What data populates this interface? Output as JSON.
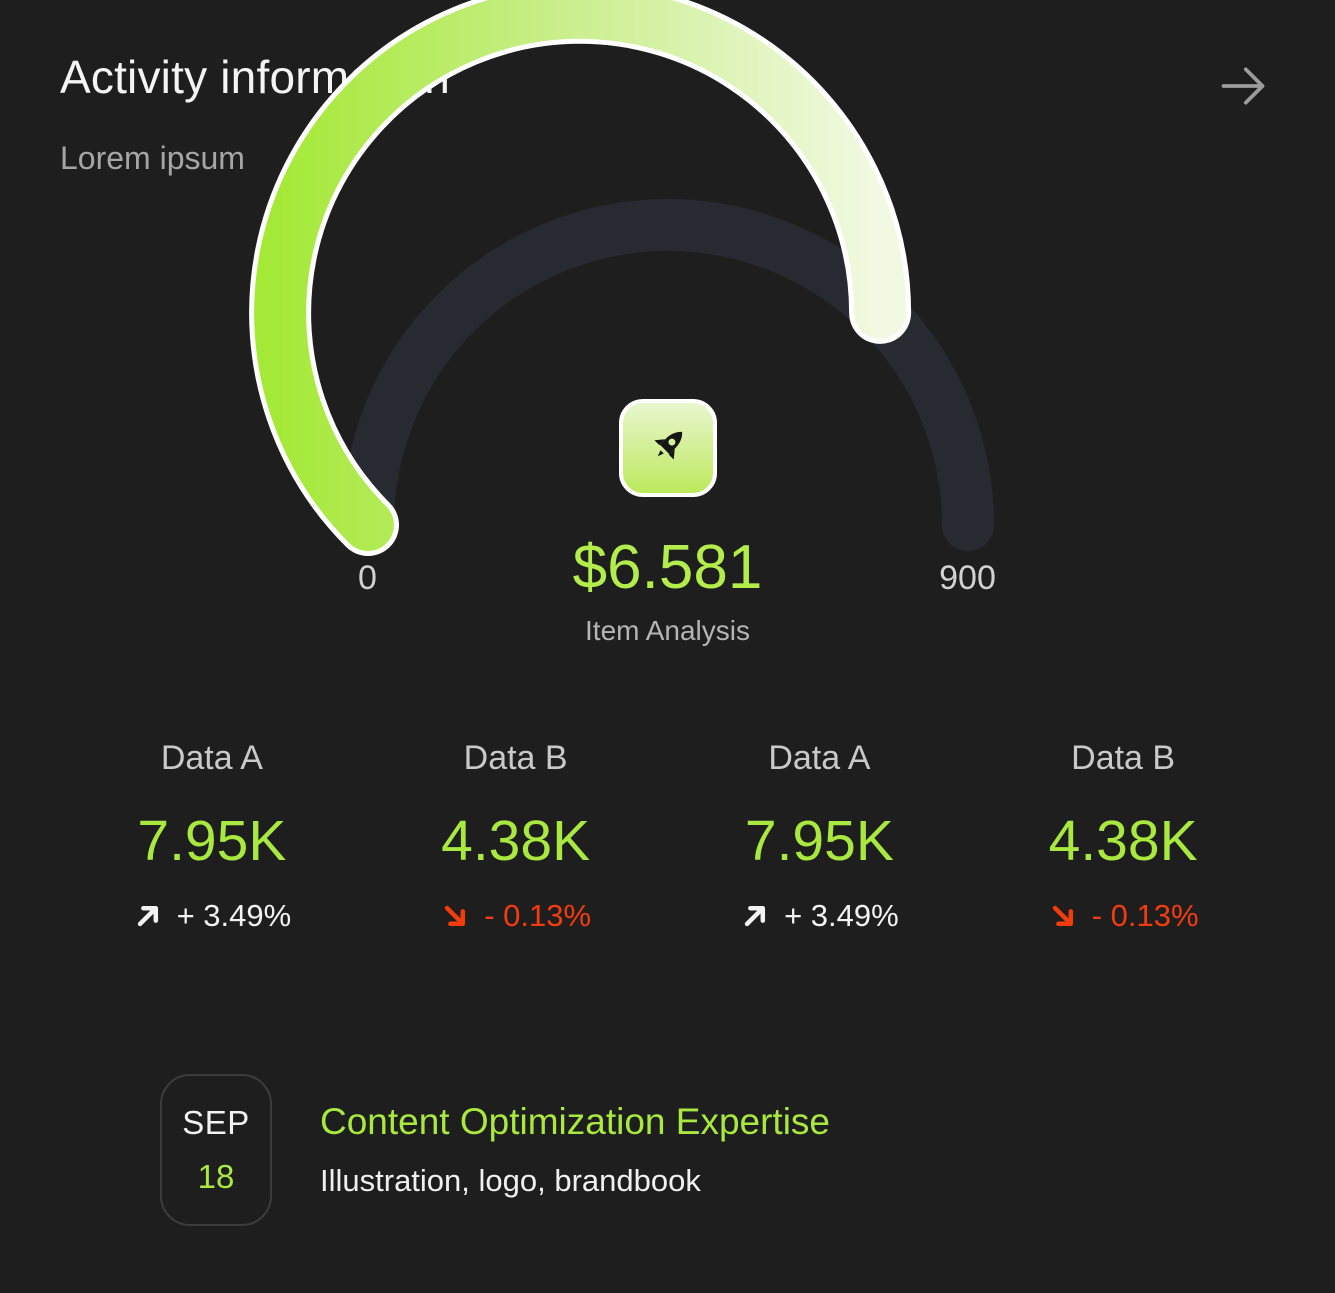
{
  "colors": {
    "background": "#1E1E1E",
    "accent": "#A9E93F",
    "accent_bright": "#B3ED4C",
    "accent_pale": "#F2F9E3",
    "negative": "#F33C0E",
    "track": "#282A31",
    "muted_text": "#A5A5A5",
    "white_text": "#F2F2F2"
  },
  "header": {
    "title": "Activity information",
    "subtitle": "Lorem ipsum"
  },
  "gauge": {
    "min_label": "0",
    "max_label": "900",
    "value": "$6.581",
    "caption": "Item Analysis"
  },
  "chart_data": {
    "type": "gauge",
    "min": 0,
    "max": 900,
    "value_display": "$6.581",
    "fill_fraction": 0.75,
    "caption": "Item Analysis",
    "track_color": "#282A31",
    "arc_gradient": [
      "#A5E938",
      "#C8EE88",
      "#F2F9E3"
    ]
  },
  "stats": [
    {
      "label": "Data A",
      "value": "7.95K",
      "change": "+ 3.49%",
      "direction": "up"
    },
    {
      "label": "Data B",
      "value": "4.38K",
      "change": "- 0.13%",
      "direction": "down"
    },
    {
      "label": "Data A",
      "value": "7.95K",
      "change": "+ 3.49%",
      "direction": "up"
    },
    {
      "label": "Data B",
      "value": "4.38K",
      "change": "- 0.13%",
      "direction": "down"
    }
  ],
  "event": {
    "date_month": "SEP",
    "date_day": "18",
    "title": "Content Optimization Expertise",
    "subtitle": "Illustration, logo, brandbook"
  },
  "icons": {
    "header_action": "arrow-right-icon",
    "gauge_center": "rocket-icon",
    "positive_change": "arrow-up-right-icon",
    "negative_change": "arrow-down-right-icon"
  }
}
